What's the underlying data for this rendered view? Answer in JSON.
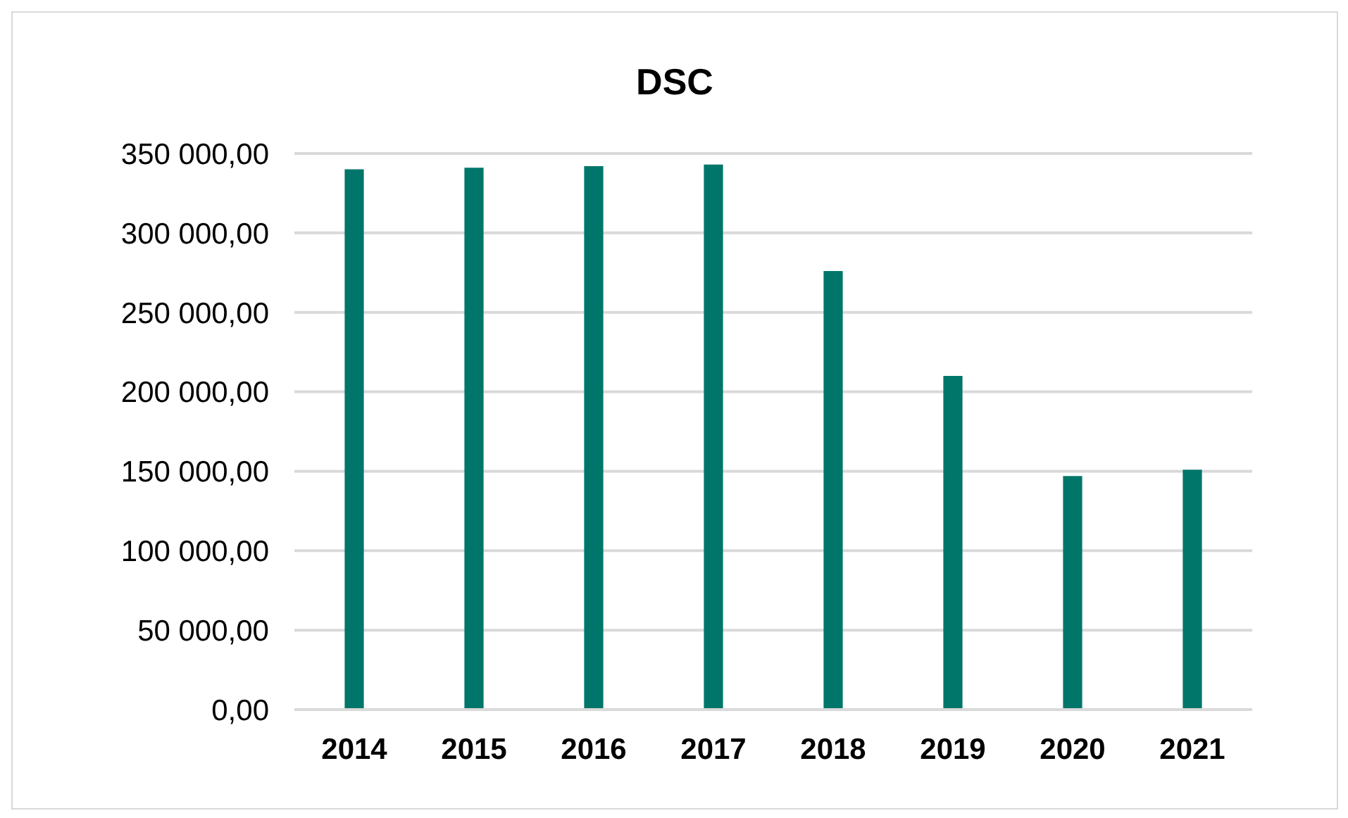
{
  "chart_data": {
    "type": "bar",
    "title": "DSC",
    "categories": [
      "2014",
      "2015",
      "2016",
      "2017",
      "2018",
      "2019",
      "2020",
      "2021"
    ],
    "values": [
      340000,
      341000,
      342000,
      343000,
      276000,
      210000,
      147000,
      151000
    ],
    "color": "#00766a",
    "ylim": [
      0,
      350000
    ],
    "yticks": [
      {
        "value": 0,
        "label": "0,00"
      },
      {
        "value": 50000,
        "label": "50 000,00"
      },
      {
        "value": 100000,
        "label": "100 000,00"
      },
      {
        "value": 150000,
        "label": "150 000,00"
      },
      {
        "value": 200000,
        "label": "200 000,00"
      },
      {
        "value": 250000,
        "label": "250 000,00"
      },
      {
        "value": 300000,
        "label": "300 000,00"
      },
      {
        "value": 350000,
        "label": "350 000,00"
      }
    ],
    "grid": "y"
  }
}
